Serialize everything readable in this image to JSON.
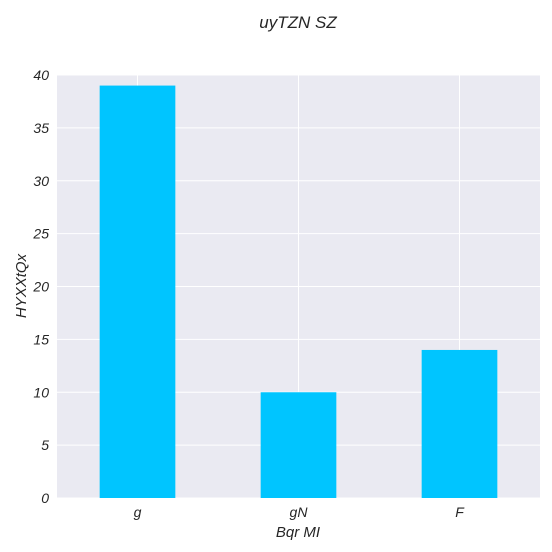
{
  "chart_data": {
    "type": "bar",
    "title": "uyTZN SZ",
    "xlabel": "Bqr MI",
    "ylabel": "HYXXtQx",
    "categories": [
      "g",
      "gN",
      "F"
    ],
    "values": [
      39,
      10,
      14
    ],
    "ylim": [
      0,
      40
    ],
    "yticks": [
      0,
      5,
      10,
      15,
      20,
      25,
      30,
      35,
      40
    ],
    "grid": true,
    "bar_color": "#00c5ff",
    "plot_background": "#eaeaf2",
    "grid_color": "#ffffff"
  }
}
